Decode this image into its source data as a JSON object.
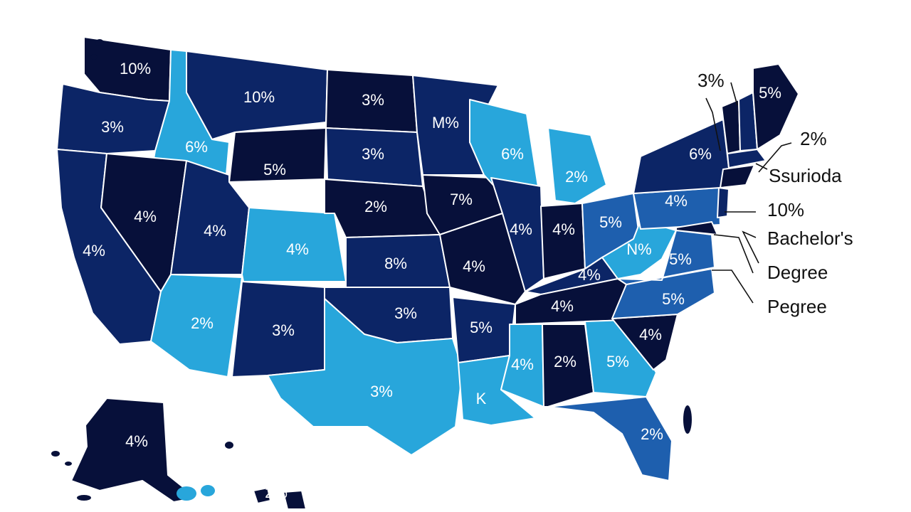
{
  "colors": {
    "darkest": "#07103a",
    "dark": "#0c2566",
    "medium": "#1e5fae",
    "light": "#28a6db",
    "label_on_dark": "#ffffff",
    "label_on_light": "#ffffff"
  },
  "states": [
    {
      "id": "WA",
      "label": "10%",
      "shade": "darkest"
    },
    {
      "id": "OR",
      "label": "3%",
      "shade": "dark"
    },
    {
      "id": "CA",
      "label": "4%",
      "shade": "dark"
    },
    {
      "id": "ID",
      "label": "6%",
      "shade": "light"
    },
    {
      "id": "NV",
      "label": "4%",
      "shade": "darkest"
    },
    {
      "id": "MT",
      "label": "10%",
      "shade": "dark"
    },
    {
      "id": "WY",
      "label": "5%",
      "shade": "darkest"
    },
    {
      "id": "UT",
      "label": "4%",
      "shade": "dark"
    },
    {
      "id": "CO",
      "label": "4%",
      "shade": "light"
    },
    {
      "id": "AZ",
      "label": "2%",
      "shade": "light"
    },
    {
      "id": "NM",
      "label": "3%",
      "shade": "dark"
    },
    {
      "id": "ND",
      "label": "3%",
      "shade": "darkest"
    },
    {
      "id": "SD",
      "label": "3%",
      "shade": "dark"
    },
    {
      "id": "NE",
      "label": "2%",
      "shade": "darkest"
    },
    {
      "id": "KS",
      "label": "8%",
      "shade": "dark"
    },
    {
      "id": "OK",
      "label": "3%",
      "shade": "dark"
    },
    {
      "id": "TX",
      "label": "3%",
      "shade": "light"
    },
    {
      "id": "MN",
      "label": "M%",
      "shade": "dark"
    },
    {
      "id": "IA",
      "label": "7%",
      "shade": "darkest"
    },
    {
      "id": "MO",
      "label": "4%",
      "shade": "darkest"
    },
    {
      "id": "AR",
      "label": "5%",
      "shade": "dark"
    },
    {
      "id": "LA",
      "label": "K",
      "shade": "light"
    },
    {
      "id": "WI",
      "label": "6%",
      "shade": "light"
    },
    {
      "id": "IL",
      "label": "4%",
      "shade": "dark"
    },
    {
      "id": "MI",
      "label": "2%",
      "shade": "light"
    },
    {
      "id": "IN",
      "label": "4%",
      "shade": "darkest"
    },
    {
      "id": "OH",
      "label": "5%",
      "shade": "medium"
    },
    {
      "id": "KY",
      "label": "4%",
      "shade": "dark"
    },
    {
      "id": "TN",
      "label": "4%",
      "shade": "darkest"
    },
    {
      "id": "MS",
      "label": "4%",
      "shade": "light"
    },
    {
      "id": "AL",
      "label": "2%",
      "shade": "darkest"
    },
    {
      "id": "GA",
      "label": "5%",
      "shade": "light"
    },
    {
      "id": "FL",
      "label": "2%",
      "shade": "medium"
    },
    {
      "id": "SC",
      "label": "4%",
      "shade": "darkest"
    },
    {
      "id": "NC",
      "label": "5%",
      "shade": "medium"
    },
    {
      "id": "VA",
      "label": "5%",
      "shade": "medium"
    },
    {
      "id": "WV",
      "label": "N%",
      "shade": "light"
    },
    {
      "id": "PA",
      "label": "4%",
      "shade": "medium"
    },
    {
      "id": "NY",
      "label": "6%",
      "shade": "dark"
    },
    {
      "id": "VT",
      "label": "",
      "shade": "darkest"
    },
    {
      "id": "NH",
      "label": "",
      "shade": "dark"
    },
    {
      "id": "ME",
      "label": "5%",
      "shade": "darkest"
    },
    {
      "id": "MA",
      "label": "",
      "shade": "dark"
    },
    {
      "id": "CT",
      "label": "",
      "shade": "darkest"
    },
    {
      "id": "NJ",
      "label": "",
      "shade": "dark"
    },
    {
      "id": "MD",
      "label": "",
      "shade": "darkest"
    },
    {
      "id": "AK",
      "label": "4%",
      "shade": "darkest"
    },
    {
      "id": "HI",
      "label": "2%",
      "shade": "darkest"
    }
  ],
  "callouts": [
    {
      "id": "vt",
      "text": "3%"
    },
    {
      "id": "nh",
      "text": "2%"
    },
    {
      "id": "surioda",
      "text": "Ssurioda"
    },
    {
      "id": "nj",
      "text": "10%"
    },
    {
      "id": "bachelors",
      "text": "Bachelor's"
    },
    {
      "id": "degree",
      "text": "Degree"
    },
    {
      "id": "pegree",
      "text": "Pegree"
    }
  ]
}
